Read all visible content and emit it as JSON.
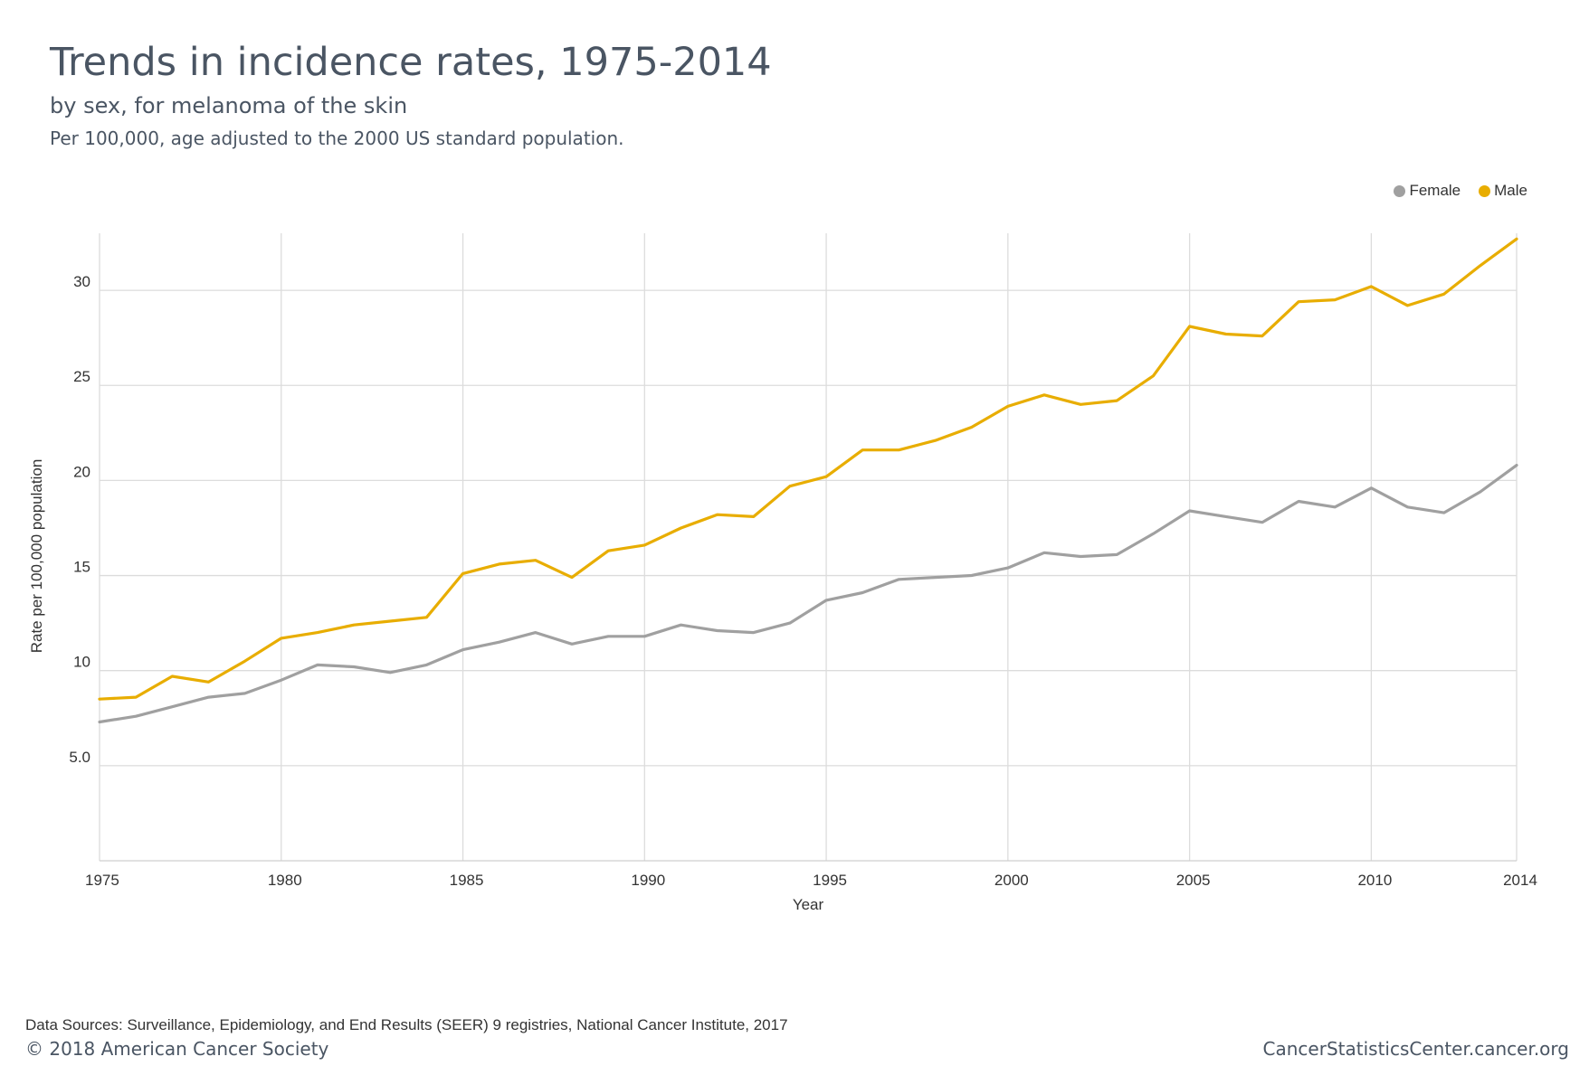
{
  "header": {
    "title": "Trends in incidence rates, 1975-2014",
    "subtitle": "by sex, for melanoma of the skin",
    "note": "Per 100,000, age adjusted to the 2000 US standard population."
  },
  "footer": {
    "source": "Data Sources: Surveillance, Epidemiology, and End Results (SEER) 9 registries, National Cancer Institute, 2017",
    "copyright": "© 2018 American Cancer Society",
    "site": "CancerStatisticsCenter.cancer.org"
  },
  "chart_data": {
    "type": "line",
    "title": "Trends in incidence rates, 1975-2014",
    "xlabel": "Year",
    "ylabel": "Rate per 100,000 population",
    "xlim": [
      1975,
      2014
    ],
    "ylim": [
      0,
      33
    ],
    "x_ticks": [
      1975,
      1980,
      1985,
      1990,
      1995,
      2000,
      2005,
      2010,
      2014
    ],
    "y_ticks": [
      5,
      10,
      15,
      20,
      25,
      30
    ],
    "y_tick_labels": [
      "5.0",
      "10",
      "15",
      "20",
      "25",
      "30"
    ],
    "grid": true,
    "legend_position": "top-right",
    "x": [
      1975,
      1976,
      1977,
      1978,
      1979,
      1980,
      1981,
      1982,
      1983,
      1984,
      1985,
      1986,
      1987,
      1988,
      1989,
      1990,
      1991,
      1992,
      1993,
      1994,
      1995,
      1996,
      1997,
      1998,
      1999,
      2000,
      2001,
      2002,
      2003,
      2004,
      2005,
      2006,
      2007,
      2008,
      2009,
      2010,
      2011,
      2012,
      2013,
      2014
    ],
    "series": [
      {
        "name": "Female",
        "color": "#a0a0a0",
        "values": [
          7.3,
          7.6,
          8.1,
          8.6,
          8.8,
          9.5,
          10.3,
          10.2,
          9.9,
          10.3,
          11.1,
          11.5,
          12.0,
          11.4,
          11.8,
          11.8,
          12.4,
          12.1,
          12.0,
          12.5,
          13.7,
          14.1,
          14.8,
          14.9,
          15.0,
          15.4,
          16.2,
          16.0,
          16.1,
          17.2,
          18.4,
          18.1,
          17.8,
          18.9,
          18.6,
          19.6,
          18.6,
          18.3,
          19.4,
          20.8
        ]
      },
      {
        "name": "Male",
        "color": "#e8ad00",
        "values": [
          8.5,
          8.6,
          9.7,
          9.4,
          10.5,
          11.7,
          12.0,
          12.4,
          12.6,
          12.8,
          15.1,
          15.6,
          15.8,
          14.9,
          16.3,
          16.6,
          17.5,
          18.2,
          18.1,
          19.7,
          20.2,
          21.6,
          21.6,
          22.1,
          22.8,
          23.9,
          24.5,
          24.0,
          24.2,
          25.5,
          28.1,
          27.7,
          27.6,
          29.4,
          29.5,
          30.2,
          29.2,
          29.8,
          31.3,
          32.7
        ]
      }
    ]
  }
}
